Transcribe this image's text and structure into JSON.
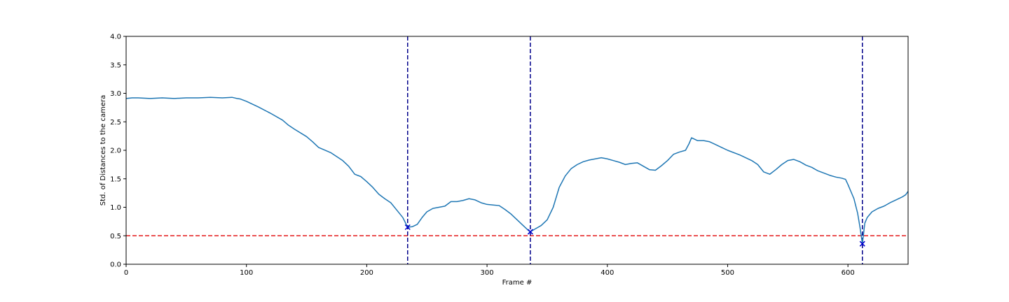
{
  "chart_data": {
    "type": "line",
    "title": "",
    "xlabel": "Frame #",
    "ylabel": "Std. of Distances to the camera",
    "xlim": [
      0,
      650
    ],
    "ylim": [
      0,
      4.0
    ],
    "xticks": [
      0,
      100,
      200,
      300,
      400,
      500,
      600
    ],
    "yticks": [
      0.0,
      0.5,
      1.0,
      1.5,
      2.0,
      2.5,
      3.0,
      3.5,
      4.0
    ],
    "xtick_labels": [
      "0",
      "100",
      "200",
      "300",
      "400",
      "500",
      "600"
    ],
    "ytick_labels": [
      "0.0",
      "0.5",
      "1.0",
      "1.5",
      "2.0",
      "2.5",
      "3.0",
      "3.5",
      "4.0"
    ],
    "grid": false,
    "series": [
      {
        "color": "#1f77b4",
        "x": [
          0,
          5,
          10,
          20,
          30,
          40,
          50,
          60,
          70,
          80,
          88,
          92,
          95,
          100,
          110,
          120,
          130,
          135,
          140,
          150,
          155,
          160,
          170,
          180,
          185,
          190,
          195,
          200,
          205,
          210,
          215,
          220,
          225,
          230,
          234,
          238,
          242,
          246,
          250,
          255,
          260,
          265,
          270,
          275,
          280,
          285,
          290,
          295,
          300,
          305,
          310,
          315,
          320,
          325,
          330,
          334,
          336,
          340,
          345,
          350,
          355,
          360,
          365,
          370,
          375,
          380,
          385,
          390,
          395,
          400,
          405,
          410,
          415,
          420,
          425,
          430,
          435,
          440,
          445,
          450,
          455,
          460,
          465,
          468,
          470,
          475,
          480,
          485,
          490,
          495,
          500,
          510,
          520,
          525,
          530,
          535,
          540,
          545,
          550,
          555,
          560,
          565,
          570,
          575,
          580,
          585,
          590,
          595,
          598,
          600,
          605,
          608,
          610,
          612,
          614,
          616,
          620,
          625,
          630,
          635,
          640,
          645,
          648,
          650
        ],
        "y": [
          2.91,
          2.92,
          2.92,
          2.91,
          2.92,
          2.91,
          2.92,
          2.92,
          2.93,
          2.92,
          2.93,
          2.91,
          2.9,
          2.86,
          2.76,
          2.65,
          2.53,
          2.44,
          2.37,
          2.24,
          2.15,
          2.05,
          1.96,
          1.82,
          1.72,
          1.58,
          1.54,
          1.45,
          1.35,
          1.23,
          1.15,
          1.08,
          0.95,
          0.82,
          0.65,
          0.66,
          0.7,
          0.82,
          0.92,
          0.98,
          1.0,
          1.02,
          1.1,
          1.1,
          1.12,
          1.15,
          1.13,
          1.08,
          1.05,
          1.04,
          1.03,
          0.96,
          0.88,
          0.78,
          0.68,
          0.6,
          0.57,
          0.62,
          0.68,
          0.78,
          1.0,
          1.35,
          1.55,
          1.68,
          1.75,
          1.8,
          1.83,
          1.85,
          1.87,
          1.85,
          1.82,
          1.79,
          1.75,
          1.77,
          1.78,
          1.72,
          1.66,
          1.65,
          1.73,
          1.82,
          1.93,
          1.97,
          2.0,
          2.12,
          2.22,
          2.17,
          2.17,
          2.15,
          2.1,
          2.05,
          2.0,
          1.92,
          1.82,
          1.75,
          1.62,
          1.58,
          1.66,
          1.75,
          1.82,
          1.84,
          1.8,
          1.74,
          1.7,
          1.64,
          1.6,
          1.56,
          1.53,
          1.51,
          1.49,
          1.4,
          1.15,
          0.9,
          0.65,
          0.36,
          0.72,
          0.82,
          0.92,
          0.98,
          1.02,
          1.08,
          1.13,
          1.18,
          1.22,
          1.28
        ]
      }
    ],
    "markers": [
      {
        "x": 234,
        "y": 0.65,
        "symbol": "x",
        "color": "#0000cd"
      },
      {
        "x": 336,
        "y": 0.57,
        "symbol": "x",
        "color": "#0000cd"
      },
      {
        "x": 612,
        "y": 0.36,
        "symbol": "x",
        "color": "#0000cd"
      }
    ],
    "vlines": [
      {
        "x": 234,
        "color": "#00008b",
        "style": "dashed"
      },
      {
        "x": 336,
        "color": "#00008b",
        "style": "dashed"
      },
      {
        "x": 612,
        "color": "#00008b",
        "style": "dashed"
      }
    ],
    "hlines": [
      {
        "y": 0.5,
        "color": "#e31a1c",
        "style": "dashed"
      }
    ]
  }
}
